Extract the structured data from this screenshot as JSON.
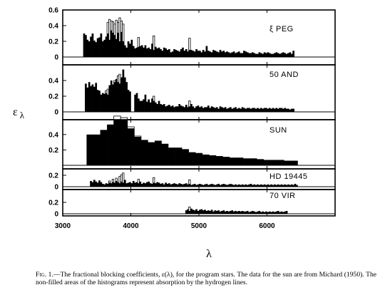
{
  "caption": {
    "lead": "Fig. 1.",
    "text": "—The fractional blocking coefficients, ε(λ), for the program stars. The data for the sun are from Michard (1950). The non-filled areas of the histograms represent absorption by the hydrogen lines."
  },
  "chart_data": {
    "type": "bar",
    "subtype": "stacked-histogram-panels",
    "xlabel": "λ",
    "ylabel": "ε λ",
    "xlim": [
      3000,
      7000
    ],
    "xticks": [
      3000,
      4000,
      5000,
      6000
    ],
    "legend": "none",
    "grid": false,
    "fill_note": "filled = metallic blocking; open (unfilled) = hydrogen-line absorption",
    "panels": [
      {
        "name": "ξ PEG",
        "ylim": [
          0,
          0.6
        ],
        "yticks": [
          0,
          0.2,
          0.4,
          0.6
        ],
        "segments": [
          {
            "start": 3300,
            "bin": 25,
            "filled": [
              0.3,
              0.28,
              0.22,
              0.2,
              0.26,
              0.3,
              0.21,
              0.19,
              0.24,
              0.25,
              0.3,
              0.2,
              0.22,
              0.26,
              0.3,
              0.22,
              0.34,
              0.31,
              0.28,
              0.23,
              0.31,
              0.2,
              0.32,
              0.2,
              0.15,
              0.12,
              0.2,
              0.17,
              0.22,
              0.14,
              0.11,
              0.12,
              0.13,
              0.14,
              0.15,
              0.12,
              0.15,
              0.11,
              0.12,
              0.1,
              0.17,
              0.09,
              0.13,
              0.11,
              0.12,
              0.1,
              0.08,
              0.12,
              0.11,
              0.09,
              0.1,
              0.06,
              0.07,
              0.1,
              0.09,
              0.08,
              0.07,
              0.1,
              0.12,
              0.08,
              0.1,
              0.07,
              0.09,
              0.09,
              0.08,
              0.07,
              0.1,
              0.08,
              0.08,
              0.06,
              0.09,
              0.07,
              0.14,
              0.08,
              0.07,
              0.06,
              0.09,
              0.08,
              0.07,
              0.06,
              0.09,
              0.07,
              0.08,
              0.06,
              0.07,
              0.06,
              0.05,
              0.06,
              0.07,
              0.05,
              0.06,
              0.07,
              0.05,
              0.05,
              0.08,
              0.07,
              0.06,
              0.05,
              0.05,
              0.06,
              0.05,
              0.04,
              0.04,
              0.06,
              0.05,
              0.04,
              0.06,
              0.05,
              0.06,
              0.05,
              0.04,
              0.04,
              0.05,
              0.06,
              0.05,
              0.04,
              0.05,
              0.06,
              0.05,
              0.04,
              0.05,
              0.06,
              0.04,
              0.08
            ],
            "hydrogen": [
              {
                "lambda": 3650,
                "width": 25,
                "value": 0.44
              },
              {
                "lambda": 3675,
                "width": 25,
                "value": 0.48
              },
              {
                "lambda": 3700,
                "width": 25,
                "value": 0.46
              },
              {
                "lambda": 3725,
                "width": 25,
                "value": 0.45
              },
              {
                "lambda": 3750,
                "width": 25,
                "value": 0.42
              },
              {
                "lambda": 3775,
                "width": 25,
                "value": 0.47
              },
              {
                "lambda": 3800,
                "width": 25,
                "value": 0.44
              },
              {
                "lambda": 3825,
                "width": 25,
                "value": 0.5
              },
              {
                "lambda": 3850,
                "width": 25,
                "value": 0.46
              },
              {
                "lambda": 3875,
                "width": 25,
                "value": 0.42
              },
              {
                "lambda": 4100,
                "width": 25,
                "value": 0.25
              },
              {
                "lambda": 4325,
                "width": 25,
                "value": 0.27
              },
              {
                "lambda": 4850,
                "width": 25,
                "value": 0.24
              }
            ]
          }
        ]
      },
      {
        "name": "50 AND",
        "ylim": [
          0,
          0.6
        ],
        "yticks": [
          0,
          0.2,
          0.4
        ],
        "segments": [
          {
            "start": 3325,
            "bin": 25,
            "filled": [
              0.36,
              0.31,
              0.38,
              0.33,
              0.35,
              0.32,
              0.37,
              0.28,
              0.27,
              0.22,
              0.24,
              0.23,
              0.24,
              0.22,
              0.34,
              0.4,
              0.35,
              0.38,
              0.42,
              0.38,
              0.36,
              0.44,
              0.54,
              0.44,
              0.38,
              0.28,
              0.26
            ],
            "hydrogen": [
              {
                "lambda": 3625,
                "width": 25,
                "value": 0.27
              },
              {
                "lambda": 3650,
                "width": 25,
                "value": 0.29
              },
              {
                "lambda": 3675,
                "width": 25,
                "value": 0.26
              },
              {
                "lambda": 3700,
                "width": 25,
                "value": 0.29
              },
              {
                "lambda": 3750,
                "width": 25,
                "value": 0.4
              },
              {
                "lambda": 3800,
                "width": 25,
                "value": 0.46
              },
              {
                "lambda": 3825,
                "width": 25,
                "value": 0.48
              },
              {
                "lambda": 3850,
                "width": 25,
                "value": 0.42
              }
            ]
          },
          {
            "start": 4050,
            "bin": 25,
            "filled": [
              0.22,
              0.24,
              0.17,
              0.14,
              0.14,
              0.16,
              0.22,
              0.13,
              0.16,
              0.12,
              0.17,
              0.14,
              0.12,
              0.1,
              0.14,
              0.1,
              0.09,
              0.1,
              0.07,
              0.08,
              0.09,
              0.07,
              0.08,
              0.06,
              0.07,
              0.07,
              0.1,
              0.08,
              0.07,
              0.06,
              0.09,
              0.06,
              0.07,
              0.1,
              0.07,
              0.05,
              0.07,
              0.08,
              0.06,
              0.07,
              0.05,
              0.06,
              0.06,
              0.08,
              0.05,
              0.07,
              0.06,
              0.05,
              0.06,
              0.04,
              0.07,
              0.06,
              0.05,
              0.06,
              0.04,
              0.05,
              0.06,
              0.04,
              0.05,
              0.06,
              0.04,
              0.05,
              0.04,
              0.06,
              0.05,
              0.04,
              0.05,
              0.05,
              0.04,
              0.05,
              0.05,
              0.04,
              0.05,
              0.04,
              0.05,
              0.04,
              0.05,
              0.05,
              0.04,
              0.05,
              0.04,
              0.05,
              0.04,
              0.05,
              0.04,
              0.05,
              0.05,
              0.04,
              0.05,
              0.04,
              0.04,
              0.03,
              0.04,
              0.04
            ],
            "hydrogen": [
              {
                "lambda": 4325,
                "width": 25,
                "value": 0.2
              },
              {
                "lambda": 4850,
                "width": 25,
                "value": 0.14
              }
            ]
          }
        ]
      },
      {
        "name": "SUN",
        "ylim": [
          0,
          0.6
        ],
        "yticks": [
          0.2,
          0.4
        ],
        "segments": [
          {
            "start": 3350,
            "bin": 100,
            "filled": [
              0.4,
              0.4,
              0.46,
              0.53,
              0.6,
              0.6,
              0.48,
              0.37,
              0.33,
              0.3,
              0.32,
              0.28,
              0.23,
              0.23,
              0.21,
              0.17,
              0.16,
              0.14,
              0.13,
              0.12,
              0.11,
              0.1,
              0.1,
              0.09,
              0.09,
              0.08,
              0.07,
              0.07,
              0.07,
              0.06,
              0.06
            ],
            "hydrogen": [
              {
                "lambda": 3750,
                "width": 100,
                "value": 0.64
              },
              {
                "lambda": 3850,
                "width": 100,
                "value": 0.62
              },
              {
                "lambda": 3950,
                "width": 100,
                "value": 0.5
              },
              {
                "lambda": 4050,
                "width": 100,
                "value": 0.38
              }
            ]
          }
        ]
      },
      {
        "name": "HD 19445",
        "ylim": [
          0,
          0.25
        ],
        "yticks": [
          0,
          0.2
        ],
        "segments": [
          {
            "start": 3400,
            "bin": 25,
            "filled": [
              0.1,
              0.08,
              0.12,
              0.09,
              0.07,
              0.11,
              0.08,
              0.05,
              0.04,
              0.06,
              0.05,
              0.07,
              0.06,
              0.08,
              0.07,
              0.1,
              0.08,
              0.06,
              0.09,
              0.07,
              0.12,
              0.06,
              0.07,
              0.08,
              0.06,
              0.1,
              0.07,
              0.08,
              0.06,
              0.09,
              0.05,
              0.07,
              0.06,
              0.08,
              0.09,
              0.06,
              0.05,
              0.07,
              0.06,
              0.08,
              0.07,
              0.05,
              0.06,
              0.04,
              0.07,
              0.05,
              0.06,
              0.04,
              0.05,
              0.06,
              0.05,
              0.04,
              0.06,
              0.05,
              0.04,
              0.05,
              0.06,
              0.04,
              0.05,
              0.03,
              0.04,
              0.05,
              0.03,
              0.04,
              0.05,
              0.04,
              0.03,
              0.04,
              0.05,
              0.03,
              0.04,
              0.05,
              0.04,
              0.03,
              0.04,
              0.05,
              0.03,
              0.04,
              0.05,
              0.04,
              0.03,
              0.04,
              0.05,
              0.04,
              0.03,
              0.04,
              0.03,
              0.04,
              0.03,
              0.04,
              0.03,
              0.04,
              0.03,
              0.04,
              0.05,
              0.03,
              0.04,
              0.03,
              0.04,
              0.03,
              0.04,
              0.03,
              0.04,
              0.03,
              0.04,
              0.03,
              0.04,
              0.03,
              0.04,
              0.03,
              0.04,
              0.03,
              0.04,
              0.03,
              0.04,
              0.03,
              0.04,
              0.03,
              0.04,
              0.03,
              0.05,
              0.03
            ],
            "hydrogen": [
              {
                "lambda": 3675,
                "width": 25,
                "value": 0.1
              },
              {
                "lambda": 3725,
                "width": 25,
                "value": 0.13
              },
              {
                "lambda": 3775,
                "width": 25,
                "value": 0.15
              },
              {
                "lambda": 3825,
                "width": 25,
                "value": 0.18
              },
              {
                "lambda": 3850,
                "width": 25,
                "value": 0.21
              },
              {
                "lambda": 3875,
                "width": 25,
                "value": 0.24
              },
              {
                "lambda": 4100,
                "width": 25,
                "value": 0.13
              },
              {
                "lambda": 4325,
                "width": 25,
                "value": 0.16
              },
              {
                "lambda": 4850,
                "width": 25,
                "value": 0.12
              }
            ]
          }
        ]
      },
      {
        "name": "70 VIR",
        "ylim": [
          0,
          0.25
        ],
        "yticks": [
          0,
          0.2
        ],
        "segments": [
          {
            "start": 4800,
            "bin": 25,
            "filled": [
              0.06,
              0.08,
              0.05,
              0.09,
              0.07,
              0.06,
              0.08,
              0.05,
              0.07,
              0.08,
              0.06,
              0.07,
              0.05,
              0.06,
              0.05,
              0.07,
              0.04,
              0.06,
              0.05,
              0.06,
              0.04,
              0.05,
              0.06,
              0.04,
              0.05,
              0.04,
              0.05,
              0.06,
              0.04,
              0.05,
              0.04,
              0.05,
              0.04,
              0.05,
              0.04,
              0.04,
              0.05,
              0.03,
              0.04,
              0.05,
              0.04,
              0.03,
              0.04,
              0.05,
              0.03,
              0.04,
              0.03,
              0.04,
              0.03,
              0.04,
              0.03,
              0.04,
              0.03,
              0.04,
              0.05,
              0.03,
              0.04,
              0.03,
              0.04,
              0.05
            ],
            "hydrogen": [
              {
                "lambda": 4850,
                "width": 25,
                "value": 0.12
              }
            ]
          }
        ]
      }
    ]
  }
}
